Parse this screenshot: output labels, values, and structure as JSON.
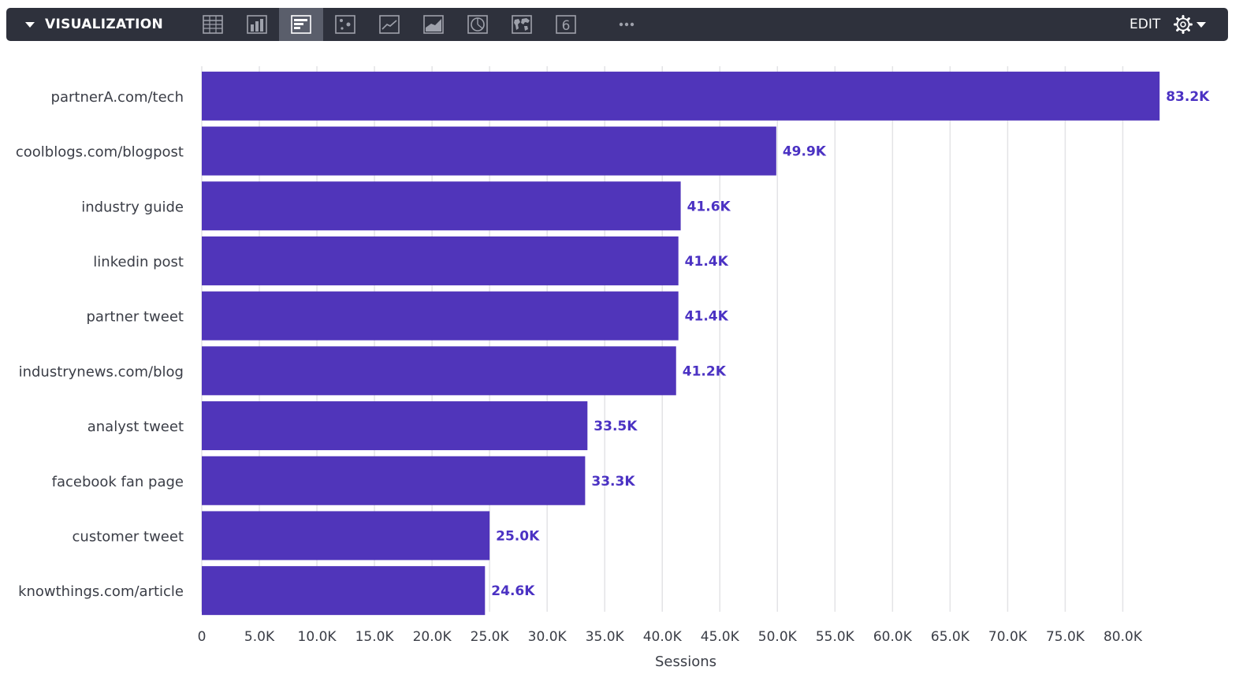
{
  "toolbar": {
    "title": "VISUALIZATION",
    "edit_label": "EDIT",
    "icons": [
      "table-icon",
      "column-chart-icon",
      "bar-chart-icon",
      "scatter-chart-icon",
      "line-chart-icon",
      "area-chart-icon",
      "pie-chart-icon",
      "map-icon",
      "single-value-icon",
      "more-icon"
    ],
    "active_icon": "bar-chart-icon",
    "single_value_glyph": "6",
    "colors": {
      "background": "#2e313c",
      "active": "#5a5e6b",
      "text": "#ffffff"
    }
  },
  "chart_data": {
    "type": "bar",
    "orientation": "horizontal",
    "categories": [
      "partnerA.com/tech",
      "coolblogs.com/blogpost",
      "industry guide",
      "linkedin post",
      "partner tweet",
      "industrynews.com/blog",
      "analyst tweet",
      "facebook fan page",
      "customer tweet",
      "knowthings.com/article"
    ],
    "values": [
      83200,
      49900,
      41600,
      41400,
      41400,
      41200,
      33500,
      33300,
      25000,
      24600
    ],
    "value_labels": [
      "83.2K",
      "49.9K",
      "41.6K",
      "41.4K",
      "41.4K",
      "41.2K",
      "33.5K",
      "33.3K",
      "25.0K",
      "24.6K"
    ],
    "xlabel": "Sessions",
    "xlim": [
      0,
      85000
    ],
    "x_ticks": [
      0,
      5000,
      10000,
      15000,
      20000,
      25000,
      30000,
      35000,
      40000,
      45000,
      50000,
      55000,
      60000,
      65000,
      70000,
      75000,
      80000
    ],
    "x_tick_labels": [
      "0",
      "5.0K",
      "10.0K",
      "15.0K",
      "20.0K",
      "25.0K",
      "30.0K",
      "35.0K",
      "40.0K",
      "45.0K",
      "50.0K",
      "55.0K",
      "60.0K",
      "65.0K",
      "70.0K",
      "75.0K",
      "80.0K"
    ],
    "grid": true,
    "bar_color": "#5035ba",
    "label_color": "#4b32c3",
    "grid_color": "#e3e3e6"
  }
}
